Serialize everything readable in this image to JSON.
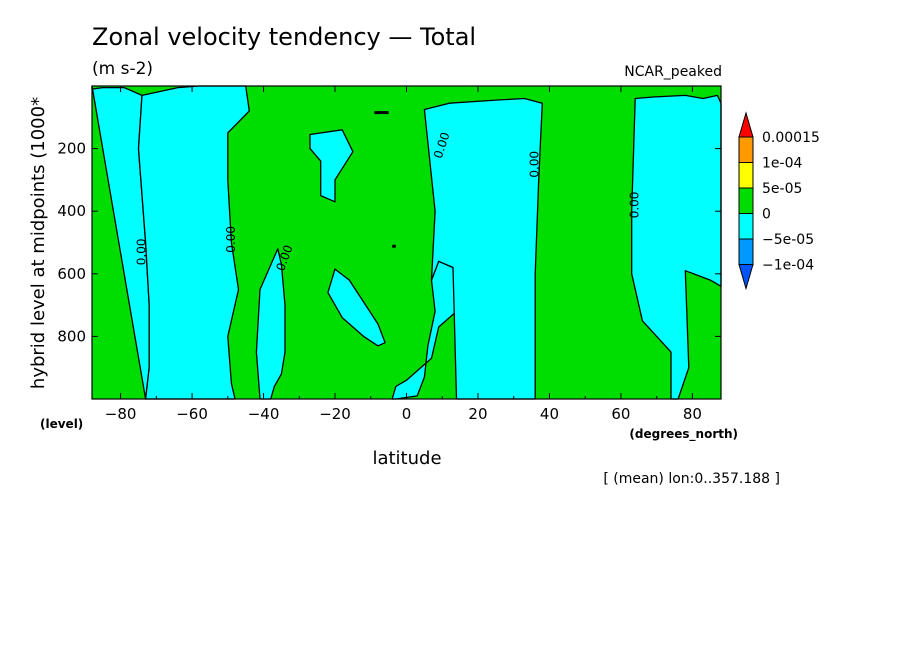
{
  "chart_data": {
    "type": "contour",
    "title": "Zonal velocity tendency — Total",
    "subtitle": "(m s-2)",
    "dataset": "NCAR_peaked",
    "xlabel": "latitude",
    "xunits": "(degrees_north)",
    "ylabel": "hybrid level at midpoints (1000*",
    "yunits": "(level)",
    "note": "[ (mean) lon:0..357.188 ]",
    "xlim": [
      -88,
      88
    ],
    "ylim": [
      1000,
      0
    ],
    "x_ticks": [
      -80,
      -60,
      -40,
      -20,
      0,
      20,
      40,
      60,
      80
    ],
    "x_tick_labels": [
      "−80",
      "−60",
      "−40",
      "−20",
      "0",
      "20",
      "40",
      "60",
      "80"
    ],
    "y_ticks": [
      200,
      400,
      600,
      800
    ],
    "y_tick_labels": [
      "200",
      "400",
      "600",
      "800"
    ],
    "colorbar": {
      "levels": [
        "0.00015",
        "1e-04",
        "5e-05",
        "0",
        "−5e-05",
        "−1e-04"
      ],
      "colors": [
        "#ff0000",
        "#ff9900",
        "#ffff00",
        "#00dd00",
        "#00ffff",
        "#0099ff",
        "#0055ff"
      ]
    },
    "fill_colors": {
      "positive": "#00dd00",
      "negative": "#00ffff"
    },
    "regions_negative": [
      {
        "name": "south-polar band",
        "x": [
          -88,
          -88,
          -85,
          -79,
          -74,
          -75,
          -73,
          -72,
          -72,
          -73
        ],
        "y": [
          0,
          10,
          5,
          5,
          30,
          200,
          500,
          700,
          900,
          1000
        ]
      },
      {
        "name": "south midlatitude column",
        "x": [
          -73,
          -72,
          -72,
          -73,
          -75,
          -74,
          -64,
          -58,
          -45,
          -44,
          -50,
          -50,
          -49,
          -47,
          -50,
          -49,
          -48
        ],
        "y": [
          1000,
          900,
          700,
          500,
          200,
          30,
          5,
          0,
          0,
          80,
          150,
          300,
          500,
          650,
          800,
          950,
          1000
        ]
      },
      {
        "name": "southern tongue",
        "x": [
          -41,
          -42,
          -41,
          -36,
          -35,
          -34,
          -34,
          -35,
          -37,
          -38
        ],
        "y": [
          1000,
          850,
          650,
          520,
          570,
          700,
          850,
          920,
          960,
          1000
        ]
      },
      {
        "name": "upper island",
        "x": [
          -27,
          -18,
          -15,
          -20,
          -20,
          -24,
          -24,
          -27
        ],
        "y": [
          155,
          140,
          210,
          300,
          370,
          350,
          240,
          200
        ]
      },
      {
        "name": "lower island",
        "x": [
          -20,
          -16,
          -8,
          -6,
          -8,
          -12,
          -18,
          -22
        ],
        "y": [
          585,
          620,
          760,
          820,
          830,
          800,
          740,
          660
        ]
      },
      {
        "name": "tropical-subtropical column",
        "x": [
          -3,
          3,
          5,
          6,
          8,
          7,
          9,
          13,
          14,
          9,
          7,
          0,
          -3,
          -4,
          -3
        ],
        "y": [
          1000,
          990,
          930,
          830,
          720,
          620,
          560,
          580,
          720,
          770,
          870,
          940,
          960,
          1000,
          1000
        ]
      },
      {
        "name": "northern broad column",
        "x": [
          5,
          12,
          25,
          33,
          38,
          37,
          36,
          36,
          30,
          20,
          14,
          13,
          9,
          7,
          8
        ],
        "y": [
          75,
          55,
          45,
          40,
          55,
          300,
          600,
          1000,
          1000,
          1000,
          1000,
          580,
          560,
          620,
          400
        ]
      },
      {
        "name": "north-polar column",
        "x": [
          64,
          69,
          78,
          83,
          87,
          88,
          88,
          85,
          78,
          79,
          76,
          74,
          74,
          66,
          63,
          63
        ],
        "y": [
          40,
          35,
          30,
          40,
          30,
          55,
          640,
          620,
          590,
          900,
          1000,
          1000,
          850,
          750,
          600,
          400
        ]
      }
    ],
    "contour_labels": [
      {
        "text": "0.00",
        "lat": -74,
        "level": 530,
        "angle": -90
      },
      {
        "text": "0.00",
        "lat": -49,
        "level": 490,
        "angle": -90
      },
      {
        "text": "0.00",
        "lat": -34,
        "level": 550,
        "angle": -70
      },
      {
        "text": "0.00",
        "lat": 10,
        "level": 190,
        "angle": -72
      },
      {
        "text": "0.00",
        "lat": 36,
        "level": 250,
        "angle": -90
      },
      {
        "text": "0.00",
        "lat": 64,
        "level": 380,
        "angle": -90
      }
    ]
  }
}
